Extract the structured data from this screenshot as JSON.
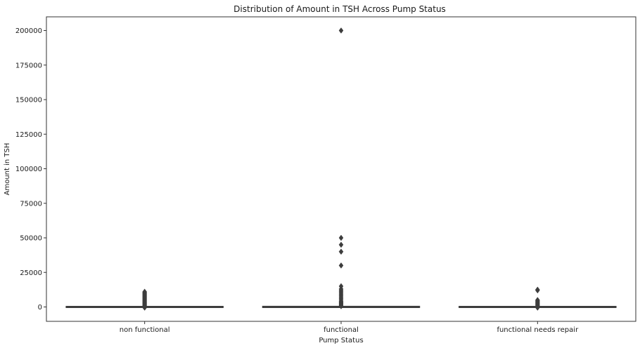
{
  "chart_data": {
    "type": "box",
    "title": "Distribution of Amount in TSH Across Pump Status",
    "xlabel": "Pump Status",
    "ylabel": "Amount in TSH",
    "ylim": [
      -10000,
      210000
    ],
    "yticks": [
      0,
      25000,
      50000,
      75000,
      100000,
      125000,
      150000,
      175000,
      200000
    ],
    "yticklabels": [
      "0",
      "25000",
      "50000",
      "75000",
      "100000",
      "125000",
      "150000",
      "175000",
      "200000"
    ],
    "categories": [
      "non functional",
      "functional",
      "functional needs repair"
    ],
    "boxes": [
      {
        "q1": 0,
        "median": 0,
        "q3": 0,
        "whisker_low": 0,
        "whisker_high": 0,
        "outliers": [
          11000,
          10500,
          10000,
          9500,
          9000,
          8500,
          8000,
          7500,
          7000,
          6500,
          6000,
          5500,
          5000,
          4500,
          4000,
          3500,
          3000,
          2500,
          2000,
          1500,
          1000,
          500,
          -500
        ]
      },
      {
        "q1": 0,
        "median": 0,
        "q3": 50,
        "whisker_low": 0,
        "whisker_high": 120,
        "outliers": [
          200000,
          50000,
          45000,
          40000,
          30000,
          15000,
          13000,
          12000,
          11000,
          10000,
          9000,
          8000,
          7000,
          6000,
          5000,
          4000,
          3500,
          3000,
          2500,
          2000,
          1500,
          1000,
          500
        ]
      },
      {
        "q1": 0,
        "median": 0,
        "q3": 0,
        "whisker_low": 0,
        "whisker_high": 0,
        "outliers": [
          12500,
          12000,
          5000,
          4500,
          4000,
          3500,
          3000,
          2500,
          2000,
          1500,
          1000,
          500,
          -500
        ]
      }
    ],
    "color": "#3d3d3d",
    "grid": false
  }
}
